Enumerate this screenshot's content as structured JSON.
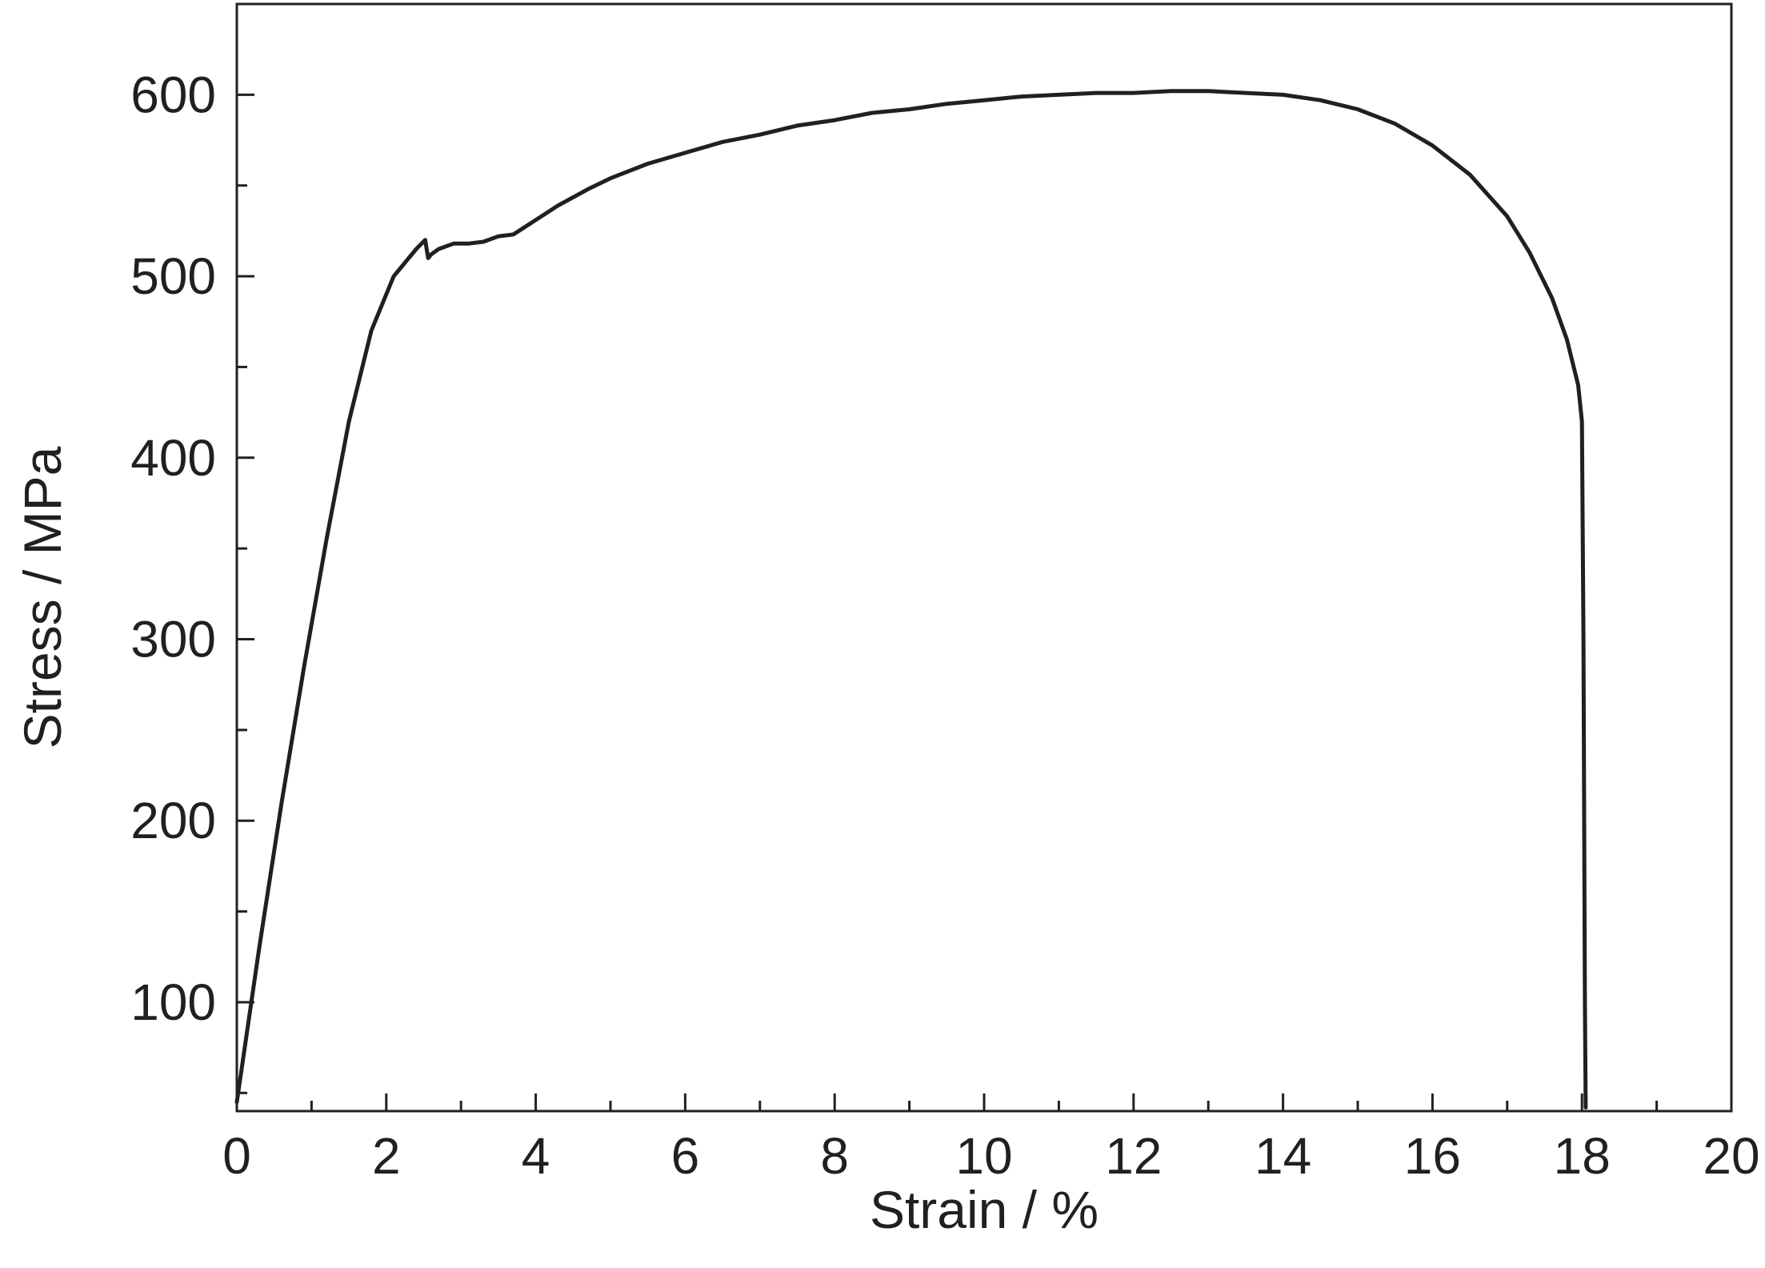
{
  "chart_data": {
    "type": "line",
    "title": "",
    "xlabel": "Strain / %",
    "ylabel": "Stress / MPa",
    "xlim": [
      0,
      20
    ],
    "ylim": [
      40,
      650
    ],
    "x_ticks": [
      0,
      2,
      4,
      6,
      8,
      10,
      12,
      14,
      16,
      18,
      20
    ],
    "x_tick_labels": [
      "0",
      "2",
      "4",
      "6",
      "8",
      "10",
      "12",
      "14",
      "16",
      "18",
      "20"
    ],
    "x_minor_ticks": [
      1,
      3,
      5,
      7,
      9,
      11,
      13,
      15,
      17,
      19
    ],
    "y_ticks": [
      100,
      200,
      300,
      400,
      500,
      600
    ],
    "y_tick_labels": [
      "100",
      "200",
      "300",
      "400",
      "500",
      "600"
    ],
    "y_minor_ticks": [
      50,
      150,
      250,
      350,
      450,
      550
    ],
    "grid": false,
    "legend": "none",
    "line_color": "#231f20",
    "series": [
      {
        "x": [
          0.0,
          0.3,
          0.6,
          0.9,
          1.2,
          1.5,
          1.8,
          2.1,
          2.4,
          2.52,
          2.56,
          2.6,
          2.7,
          2.9,
          3.1,
          3.3,
          3.5,
          3.7,
          3.85,
          4.0,
          4.3,
          4.7,
          5.0,
          5.5,
          6.0,
          6.5,
          7.0,
          7.5,
          8.0,
          8.5,
          9.0,
          9.5,
          10.0,
          10.5,
          11.0,
          11.5,
          12.0,
          12.5,
          13.0,
          13.5,
          14.0,
          14.5,
          15.0,
          15.5,
          16.0,
          16.5,
          17.0,
          17.3,
          17.6,
          17.8,
          17.95,
          18.0,
          18.02,
          18.03,
          18.04,
          18.05
        ],
        "y": [
          45,
          130,
          210,
          285,
          355,
          420,
          470,
          500,
          515,
          520,
          510,
          512,
          515,
          518,
          518,
          519,
          522,
          523,
          527,
          531,
          539,
          548,
          554,
          562,
          568,
          574,
          578,
          583,
          586,
          590,
          592,
          595,
          597,
          599,
          600,
          601,
          601,
          602,
          602,
          601,
          600,
          597,
          592,
          584,
          572,
          556,
          533,
          513,
          488,
          465,
          440,
          420,
          300,
          200,
          100,
          42
        ]
      }
    ]
  }
}
